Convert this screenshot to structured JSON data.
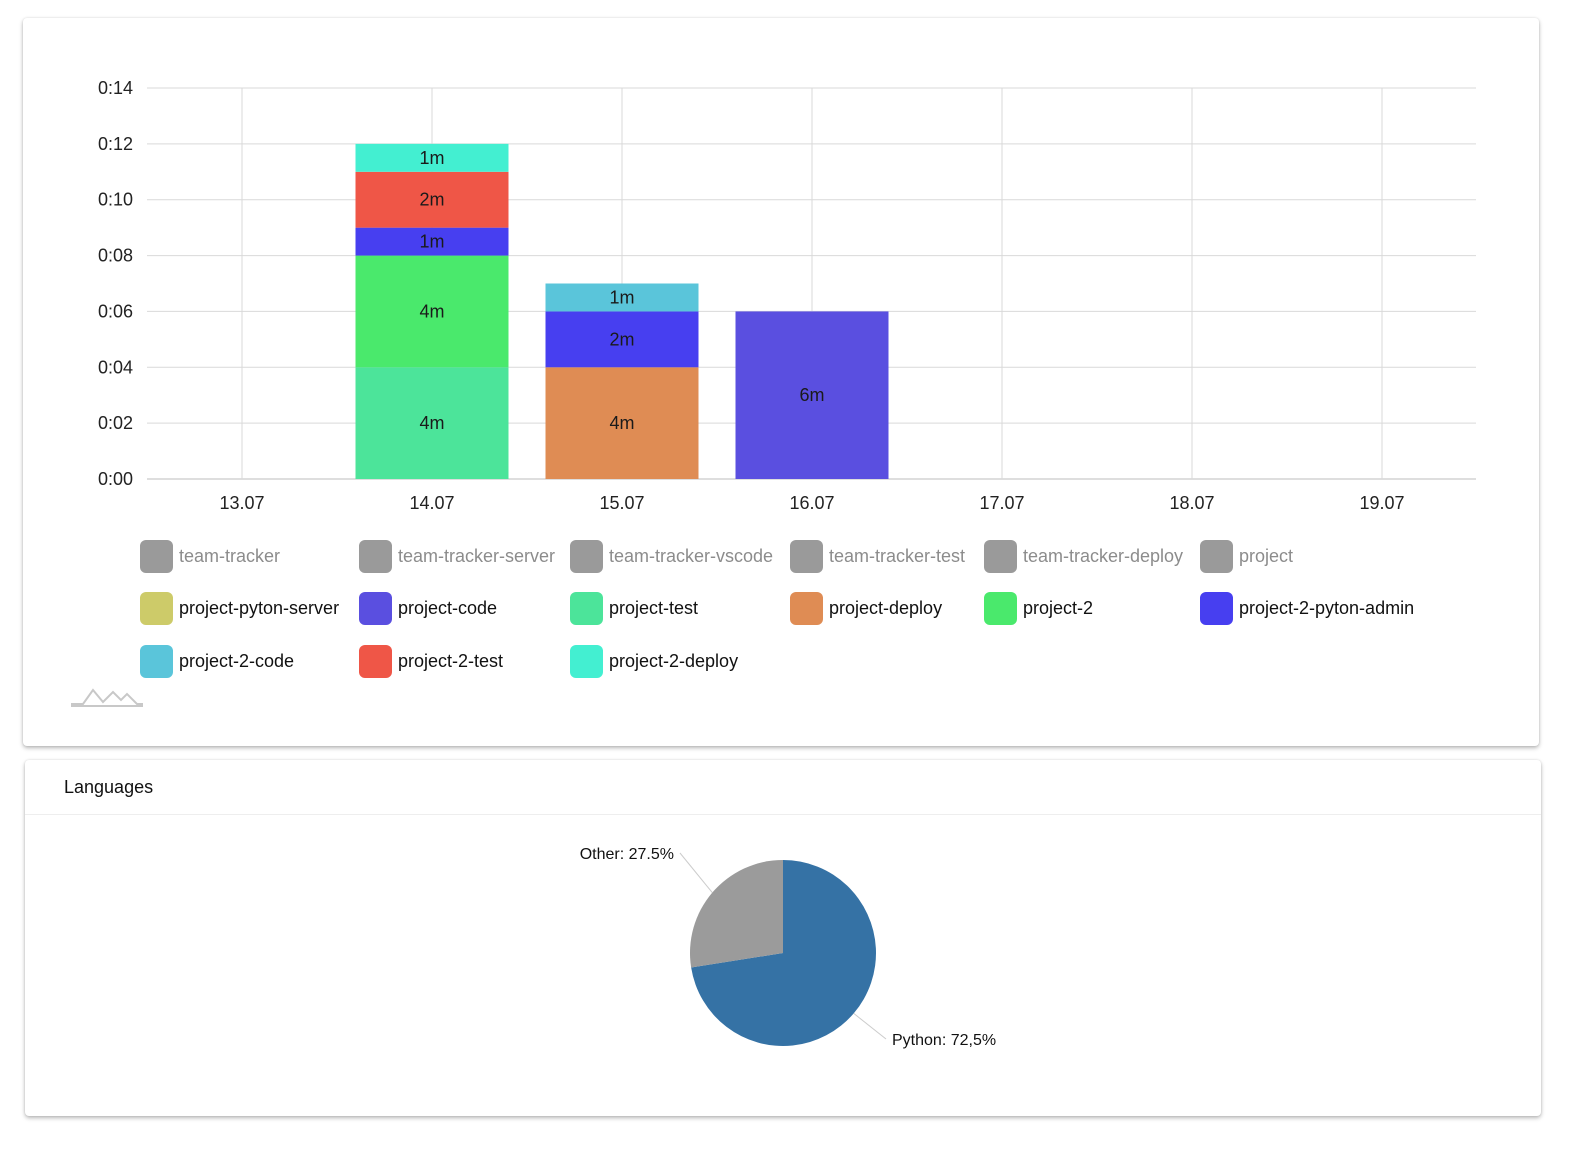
{
  "colors": {
    "hidden": "#9a9a9a",
    "gridline": "#d9d9d9",
    "axis": "#bdbdbd",
    "python": "#3572a5",
    "other": "#9b9b9b"
  },
  "chart_data": [
    {
      "type": "bar",
      "stacked": true,
      "title": "",
      "xlabel": "",
      "ylabel": "",
      "categories": [
        "13.07",
        "14.07",
        "15.07",
        "16.07",
        "17.07",
        "18.07",
        "19.07"
      ],
      "y_ticks": [
        "0:00",
        "0:02",
        "0:04",
        "0:06",
        "0:08",
        "0:10",
        "0:12",
        "0:14"
      ],
      "ylim_minutes": [
        0,
        14
      ],
      "grid": true,
      "legend_position": "bottom",
      "series": [
        {
          "name": "team-tracker",
          "color": "#9a9a9a",
          "hidden": true,
          "values": [
            0,
            0,
            0,
            0,
            0,
            0,
            0
          ]
        },
        {
          "name": "team-tracker-server",
          "color": "#9a9a9a",
          "hidden": true,
          "values": [
            0,
            0,
            0,
            0,
            0,
            0,
            0
          ]
        },
        {
          "name": "team-tracker-vscode",
          "color": "#9a9a9a",
          "hidden": true,
          "values": [
            0,
            0,
            0,
            0,
            0,
            0,
            0
          ]
        },
        {
          "name": "team-tracker-test",
          "color": "#9a9a9a",
          "hidden": true,
          "values": [
            0,
            0,
            0,
            0,
            0,
            0,
            0
          ]
        },
        {
          "name": "team-tracker-deploy",
          "color": "#9a9a9a",
          "hidden": true,
          "values": [
            0,
            0,
            0,
            0,
            0,
            0,
            0
          ]
        },
        {
          "name": "project",
          "color": "#9a9a9a",
          "hidden": true,
          "values": [
            0,
            0,
            0,
            0,
            0,
            0,
            0
          ]
        },
        {
          "name": "project-pyton-server",
          "color": "#cdcb69",
          "hidden": false,
          "values": [
            0,
            0,
            0,
            0,
            0,
            0,
            0
          ]
        },
        {
          "name": "project-code",
          "color": "#5a4fe0",
          "hidden": false,
          "values": [
            0,
            0,
            0,
            6,
            0,
            0,
            0
          ],
          "labels": [
            "",
            "",
            "",
            "6m",
            "",
            "",
            ""
          ]
        },
        {
          "name": "project-test",
          "color": "#4ce49a",
          "hidden": false,
          "values": [
            0,
            4,
            0,
            0,
            0,
            0,
            0
          ],
          "labels": [
            "",
            "4m",
            "",
            "",
            "",
            "",
            ""
          ]
        },
        {
          "name": "project-deploy",
          "color": "#df8c54",
          "hidden": false,
          "values": [
            0,
            0,
            4,
            0,
            0,
            0,
            0
          ],
          "labels": [
            "",
            "",
            "4m",
            "",
            "",
            "",
            ""
          ]
        },
        {
          "name": "project-2",
          "color": "#4ae96c",
          "hidden": false,
          "values": [
            0,
            4,
            0,
            0,
            0,
            0,
            0
          ],
          "labels": [
            "",
            "4m",
            "",
            "",
            "",
            "",
            ""
          ]
        },
        {
          "name": "project-2-pyton-admin",
          "color": "#473ff0",
          "hidden": false,
          "values": [
            0,
            1,
            2,
            0,
            0,
            0,
            0
          ],
          "labels": [
            "",
            "1m",
            "2m",
            "",
            "",
            "",
            ""
          ]
        },
        {
          "name": "project-2-code",
          "color": "#5ac5da",
          "hidden": false,
          "values": [
            0,
            0,
            1,
            0,
            0,
            0,
            0
          ],
          "labels": [
            "",
            "",
            "1m",
            "",
            "",
            "",
            ""
          ]
        },
        {
          "name": "project-2-test",
          "color": "#ef5647",
          "hidden": false,
          "values": [
            0,
            2,
            0,
            0,
            0,
            0,
            0
          ],
          "labels": [
            "",
            "2m",
            "",
            "",
            "",
            "",
            ""
          ]
        },
        {
          "name": "project-2-deploy",
          "color": "#43efd1",
          "hidden": false,
          "values": [
            0,
            1,
            0,
            0,
            0,
            0,
            0
          ],
          "labels": [
            "",
            "1m",
            "",
            "",
            "",
            "",
            ""
          ]
        }
      ]
    },
    {
      "type": "pie",
      "title": "Languages",
      "slices": [
        {
          "name": "Python",
          "value": 72.5,
          "label": "Python: 72,5%",
          "color": "#3572a5"
        },
        {
          "name": "Other",
          "value": 27.5,
          "label": "Other: 27.5%",
          "color": "#9b9b9b"
        }
      ]
    }
  ]
}
